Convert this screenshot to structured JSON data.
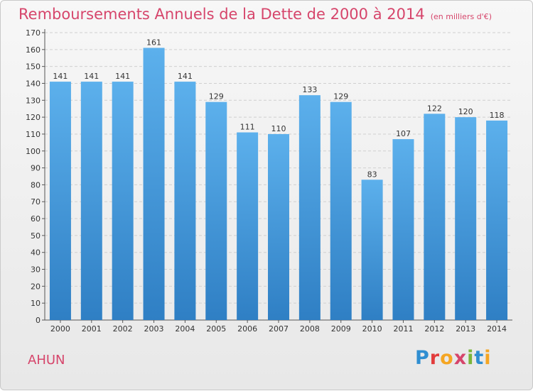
{
  "header": {
    "title": "Remboursements Annuels de la Dette de 2000 à 2014",
    "unit": "(en milliers d'€)"
  },
  "footer": {
    "commune": "AHUN",
    "logo_letters": [
      "P",
      "r",
      "o",
      "x",
      "i",
      "t",
      "i"
    ],
    "logo_colors": [
      "#2f8ed1",
      "#e23c3c",
      "#f5a623",
      "#d6456b",
      "#7bb53a",
      "#2f8ed1",
      "#f5a623"
    ]
  },
  "chart_data": {
    "type": "bar",
    "title": "Remboursements Annuels de la Dette de 2000 à 2014",
    "xlabel": "",
    "ylabel": "",
    "categories": [
      "2000",
      "2001",
      "2002",
      "2003",
      "2004",
      "2005",
      "2006",
      "2007",
      "2008",
      "2009",
      "2010",
      "2011",
      "2012",
      "2013",
      "2014"
    ],
    "values": [
      141,
      141,
      141,
      161,
      141,
      129,
      111,
      110,
      133,
      129,
      83,
      107,
      122,
      120,
      118
    ],
    "ylim": [
      0,
      170
    ],
    "yticks": [
      0,
      10,
      20,
      30,
      40,
      50,
      60,
      70,
      80,
      90,
      100,
      110,
      120,
      130,
      140,
      150,
      160,
      170
    ],
    "grid": true,
    "bar_color": "#4ea3e3"
  }
}
